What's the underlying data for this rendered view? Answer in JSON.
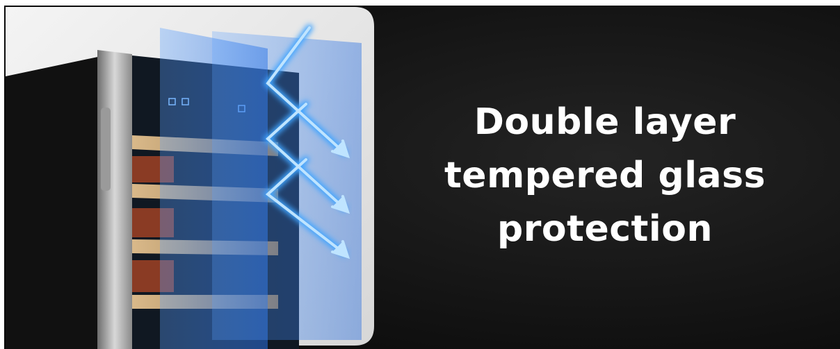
{
  "headline": {
    "lines": [
      "Double layer",
      "tempered glass",
      "protection"
    ]
  }
}
